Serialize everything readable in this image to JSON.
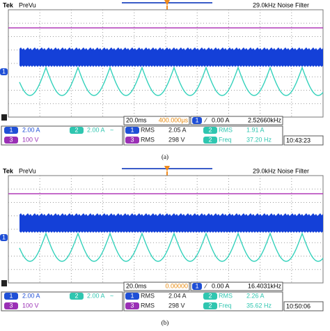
{
  "panels": [
    {
      "brand": "Tek",
      "mode": "PreVu",
      "filter": "29.0kHz  Noise Filter",
      "timebase": "20.0ms",
      "trigger_position": "400.000µs",
      "trigger_level": "0.00 A",
      "trigger_frequency": "2.52660kHz",
      "channels": [
        {
          "id": "1",
          "scale": "2.00 A"
        },
        {
          "id": "2",
          "scale": "2.00 A"
        },
        {
          "id": "3",
          "scale": "100 V"
        }
      ],
      "measurements": [
        {
          "ch": "1",
          "type": "RMS",
          "value": "2.05 A"
        },
        {
          "ch": "2",
          "type": "RMS",
          "value": "1.91 A"
        },
        {
          "ch": "3",
          "type": "RMS",
          "value": "298 V"
        },
        {
          "ch": "2",
          "type": "Freq",
          "value": "37.20 Hz"
        }
      ],
      "clock": "10:43:23",
      "caption": "(a)"
    },
    {
      "brand": "Tek",
      "mode": "PreVu",
      "filter": "29.0kHz  Noise Filter",
      "timebase": "20.0ms",
      "trigger_position": "0.00000",
      "trigger_level": "0.00 A",
      "trigger_frequency": "16.4031kHz",
      "channels": [
        {
          "id": "1",
          "scale": "2.00 A"
        },
        {
          "id": "2",
          "scale": "2.00 A"
        },
        {
          "id": "3",
          "scale": "100 V"
        }
      ],
      "measurements": [
        {
          "ch": "1",
          "type": "RMS",
          "value": "2.04 A"
        },
        {
          "ch": "2",
          "type": "RMS",
          "value": "2.26 A"
        },
        {
          "ch": "3",
          "type": "RMS",
          "value": "298 V"
        },
        {
          "ch": "2",
          "type": "Freq",
          "value": "35.62 Hz"
        }
      ],
      "clock": "10:50:06",
      "caption": "(b)"
    }
  ]
}
